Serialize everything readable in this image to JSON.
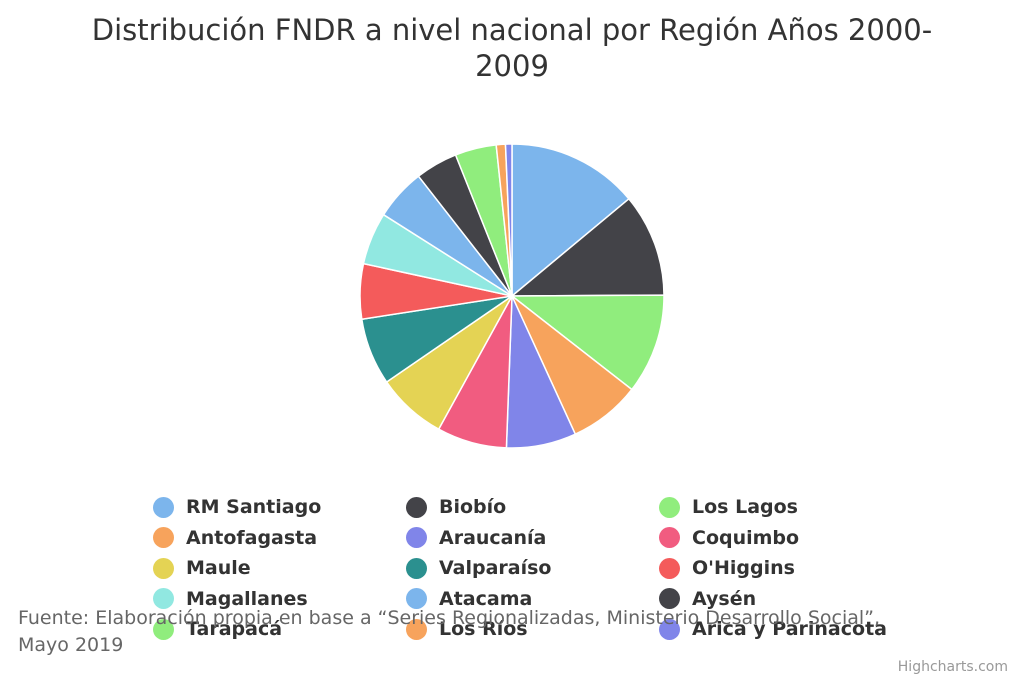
{
  "chart_data": {
    "type": "pie",
    "title": "Distribución FNDR a nivel nacional por Región Años 2000-2009",
    "slices": [
      {
        "name": "RM Santiago",
        "value": 14.3,
        "color": "#7cb5ec"
      },
      {
        "name": "Biobío",
        "value": 11.2,
        "color": "#434348"
      },
      {
        "name": "Los Lagos",
        "value": 10.9,
        "color": "#90ed7d"
      },
      {
        "name": "Antofagasta",
        "value": 7.8,
        "color": "#f7a35c"
      },
      {
        "name": "Araucanía",
        "value": 7.6,
        "color": "#8085e9"
      },
      {
        "name": "Coquimbo",
        "value": 7.6,
        "color": "#f15c80"
      },
      {
        "name": "Maule",
        "value": 7.6,
        "color": "#e4d354"
      },
      {
        "name": "Valparaíso",
        "value": 7.3,
        "color": "#2b908f"
      },
      {
        "name": "O'Higgins",
        "value": 6.0,
        "color": "#f45b5b"
      },
      {
        "name": "Magallanes",
        "value": 5.7,
        "color": "#91e8e1"
      },
      {
        "name": "Atacama",
        "value": 5.6,
        "color": "#7cb5ec"
      },
      {
        "name": "Aysén",
        "value": 4.6,
        "color": "#434348"
      },
      {
        "name": "Tarapacá",
        "value": 4.5,
        "color": "#90ed7d"
      },
      {
        "name": "Los Ríos",
        "value": 1.0,
        "color": "#f7a35c"
      },
      {
        "name": "Arica y Parinacota",
        "value": 0.7,
        "color": "#8085e9"
      }
    ],
    "legend_position": "bottom"
  },
  "source_note": "Fuente: Elaboración propia en base a “Series Regionalizadas, Ministerio Desarrollo Social”, Mayo 2019",
  "credits": "Highcharts.com"
}
